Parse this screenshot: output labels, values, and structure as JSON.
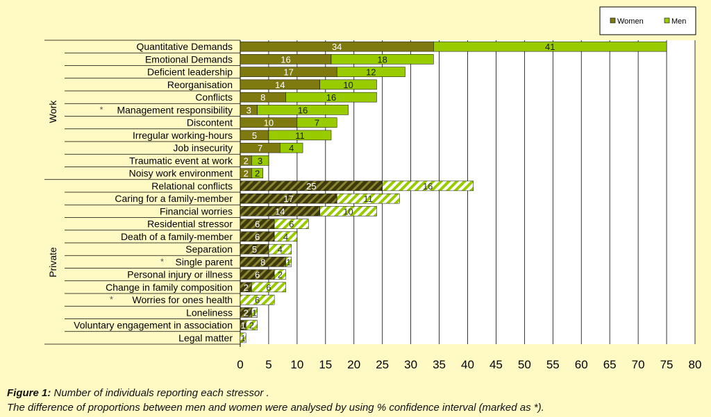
{
  "chart_data": {
    "type": "bar",
    "orientation": "horizontal",
    "stacked": true,
    "xlim": [
      0,
      80
    ],
    "x_ticks": [
      "0",
      "5",
      "10",
      "15",
      "20",
      "25",
      "30",
      "35",
      "40",
      "45",
      "50",
      "55",
      "60",
      "65",
      "70",
      "75",
      "80"
    ],
    "legend": {
      "position": "top-right",
      "items": [
        {
          "label": "Women",
          "color": "#7F7A0F"
        },
        {
          "label": "Men",
          "color": "#99CC00"
        }
      ]
    },
    "groups": [
      {
        "label": "Work",
        "pattern": "solid",
        "start": 0,
        "end": 10
      },
      {
        "label": "Private",
        "pattern": "hatched",
        "start": 11,
        "end": 23
      }
    ],
    "categories": [
      {
        "label": "Quantitative Demands",
        "asterisk": false,
        "women": 34,
        "men": 41
      },
      {
        "label": "Emotional Demands",
        "asterisk": false,
        "women": 16,
        "men": 18
      },
      {
        "label": "Deficient leadership",
        "asterisk": false,
        "women": 17,
        "men": 12
      },
      {
        "label": "Reorganisation",
        "asterisk": false,
        "women": 14,
        "men": 10
      },
      {
        "label": "Conflicts",
        "asterisk": false,
        "women": 8,
        "men": 16
      },
      {
        "label": "Management responsibility",
        "asterisk": true,
        "women": 3,
        "men": 16
      },
      {
        "label": "Discontent",
        "asterisk": false,
        "women": 10,
        "men": 7
      },
      {
        "label": "Irregular working-hours",
        "asterisk": false,
        "women": 5,
        "men": 11
      },
      {
        "label": "Job insecurity",
        "asterisk": false,
        "women": 7,
        "men": 4
      },
      {
        "label": "Traumatic event at work",
        "asterisk": false,
        "women": 2,
        "men": 3
      },
      {
        "label": "Noisy work environment",
        "asterisk": false,
        "women": 2,
        "men": 2
      },
      {
        "label": "Relational conflicts",
        "asterisk": false,
        "women": 25,
        "men": 16
      },
      {
        "label": "Caring for a family-member",
        "asterisk": false,
        "women": 17,
        "men": 11
      },
      {
        "label": "Financial worries",
        "asterisk": false,
        "women": 14,
        "men": 10
      },
      {
        "label": "Residential stressor",
        "asterisk": false,
        "women": 6,
        "men": 6
      },
      {
        "label": "Death of a family-member",
        "asterisk": false,
        "women": 6,
        "men": 4
      },
      {
        "label": "Separation",
        "asterisk": false,
        "women": 5,
        "men": 4
      },
      {
        "label": "Single parent",
        "asterisk": true,
        "women": 8,
        "men": 1
      },
      {
        "label": "Personal injury or illness",
        "asterisk": false,
        "women": 6,
        "men": 2
      },
      {
        "label": "Change in family composition",
        "asterisk": false,
        "women": 2,
        "men": 6
      },
      {
        "label": "Worries for ones health",
        "asterisk": true,
        "women": 0,
        "men": 6
      },
      {
        "label": "Loneliness",
        "asterisk": false,
        "women": 2,
        "men": 1
      },
      {
        "label": "Voluntary engagement in association",
        "asterisk": false,
        "women": 1,
        "men": 2
      },
      {
        "label": "Legal matter",
        "asterisk": false,
        "women": 0,
        "men": 1
      }
    ],
    "asterisk_symbol": "*"
  },
  "caption": {
    "label": "Figure 1:",
    "line1": " Number of individuals reporting each stressor .",
    "line2": "The difference of proportions between men and women were analysed by using % confidence interval (marked as *)."
  },
  "colors": {
    "women": "#7F7A0F",
    "men": "#99CC00",
    "women_hatch_bg": "#3E3A0C",
    "women_hatch_line": "#8A8530",
    "men_hatch_bg": "#FFFFFF",
    "men_hatch_line": "#99CC00"
  }
}
